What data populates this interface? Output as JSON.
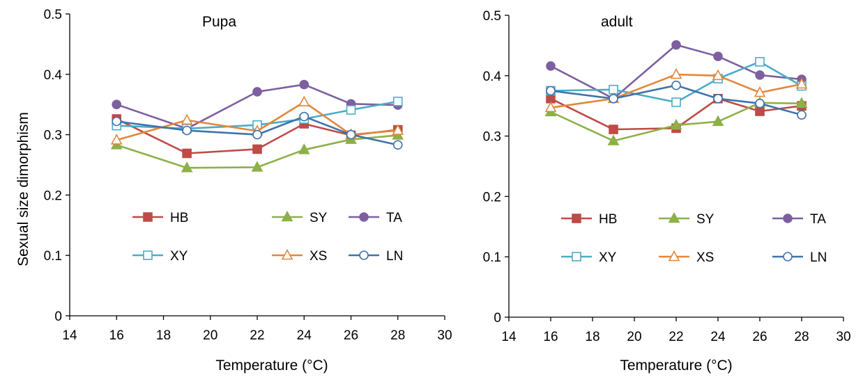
{
  "chart_data": [
    {
      "type": "line",
      "title": "Pupa",
      "xlabel": "Temperature (°C)",
      "ylabel": "Sexual size dimorphism",
      "xlim": [
        14,
        30
      ],
      "ylim": [
        0,
        0.5
      ],
      "xticks": [
        14,
        16,
        18,
        20,
        22,
        24,
        26,
        28,
        30
      ],
      "yticks": [
        "0",
        "0.1",
        "0.2",
        "0.3",
        "0.4",
        "0.5"
      ],
      "x": [
        16,
        19,
        22,
        24,
        26,
        28
      ],
      "grid": false,
      "legend_position": "inside, lower middle, 3 columns",
      "series": [
        {
          "name": "HB",
          "color": "#BE4B48",
          "marker": "square-filled",
          "values": [
            0.326,
            0.269,
            0.276,
            0.318,
            0.299,
            0.308
          ]
        },
        {
          "name": "SY",
          "color": "#8DB049",
          "marker": "triangle-filled",
          "values": [
            0.283,
            0.245,
            0.246,
            0.275,
            0.292,
            0.299
          ]
        },
        {
          "name": "TA",
          "color": "#7D5FA0",
          "marker": "circle-filled",
          "values": [
            0.35,
            0.31,
            0.371,
            0.383,
            0.351,
            0.349
          ]
        },
        {
          "name": "XY",
          "color": "#4BACC6",
          "marker": "square-open",
          "values": [
            0.315,
            0.31,
            0.316,
            0.326,
            0.341,
            0.355
          ]
        },
        {
          "name": "XS",
          "color": "#E2873A",
          "marker": "triangle-open",
          "values": [
            0.291,
            0.324,
            0.306,
            0.354,
            0.3,
            0.307
          ]
        },
        {
          "name": "LN",
          "color": "#3E73AB",
          "marker": "circle-open",
          "values": [
            0.322,
            0.307,
            0.3,
            0.33,
            0.3,
            0.283
          ]
        }
      ]
    },
    {
      "type": "line",
      "title": "adult",
      "xlabel": "Temperature (°C)",
      "ylabel": "",
      "xlim": [
        14,
        30
      ],
      "ylim": [
        0,
        0.5
      ],
      "xticks": [
        14,
        16,
        18,
        20,
        22,
        24,
        26,
        28,
        30
      ],
      "yticks": [
        "0",
        "0.1",
        "0.2",
        "0.3",
        "0.4",
        "0.5"
      ],
      "x": [
        16,
        19,
        22,
        24,
        26,
        28
      ],
      "grid": false,
      "legend_position": "inside, lower middle, 3 columns",
      "series": [
        {
          "name": "HB",
          "color": "#BE4B48",
          "marker": "square-filled",
          "values": [
            0.362,
            0.311,
            0.313,
            0.362,
            0.341,
            0.35
          ]
        },
        {
          "name": "SY",
          "color": "#8DB049",
          "marker": "triangle-filled",
          "values": [
            0.34,
            0.292,
            0.318,
            0.324,
            0.355,
            0.354
          ]
        },
        {
          "name": "TA",
          "color": "#7D5FA0",
          "marker": "circle-filled",
          "values": [
            0.416,
            0.362,
            0.451,
            0.432,
            0.401,
            0.394
          ]
        },
        {
          "name": "XY",
          "color": "#4BACC6",
          "marker": "square-open",
          "values": [
            0.375,
            0.377,
            0.356,
            0.395,
            0.423,
            0.383
          ]
        },
        {
          "name": "XS",
          "color": "#E2873A",
          "marker": "triangle-open",
          "values": [
            0.347,
            0.362,
            0.402,
            0.4,
            0.372,
            0.386
          ]
        },
        {
          "name": "LN",
          "color": "#3E73AB",
          "marker": "circle-open",
          "values": [
            0.375,
            0.362,
            0.384,
            0.362,
            0.354,
            0.335
          ]
        }
      ]
    }
  ]
}
